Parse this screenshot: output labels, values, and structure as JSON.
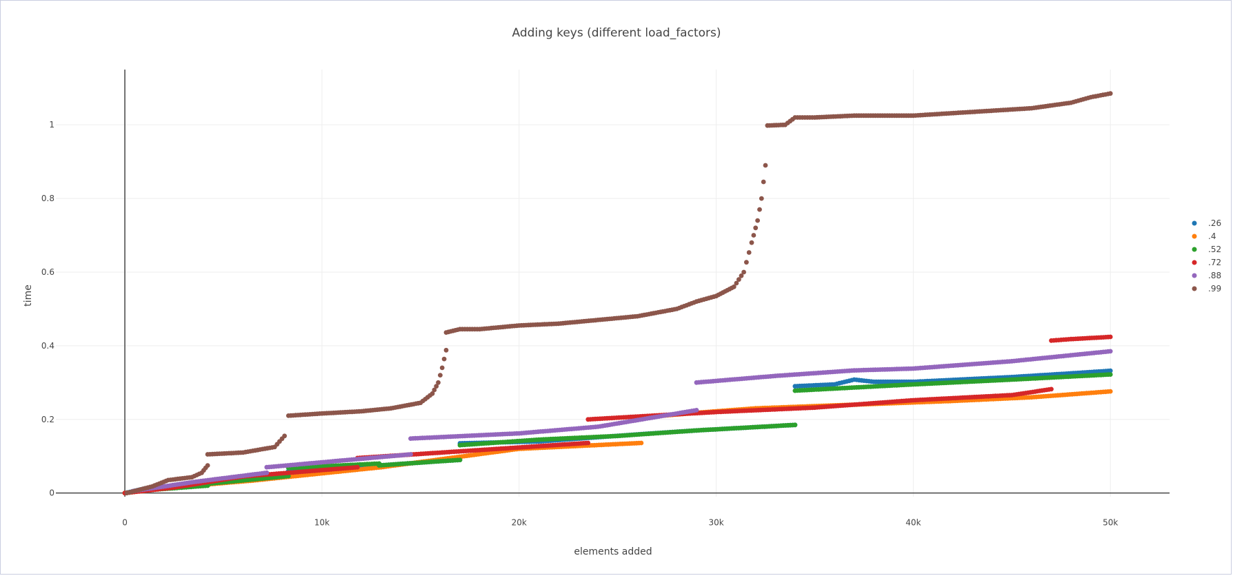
{
  "chart_data": {
    "type": "scatter",
    "title": "Adding keys (different load_factors)",
    "xlabel": "elements added",
    "ylabel": "time",
    "xlim": [
      -3500,
      53000
    ],
    "ylim": [
      -0.01,
      1.15
    ],
    "xticks": [
      0,
      10000,
      20000,
      30000,
      40000,
      50000
    ],
    "xtick_labels": [
      "0",
      "10k",
      "20k",
      "30k",
      "40k",
      "50k"
    ],
    "yticks": [
      0,
      0.2,
      0.4,
      0.6,
      0.8,
      1
    ],
    "ytick_labels": [
      "0",
      "0.2",
      "0.4",
      "0.6",
      "0.8",
      "1"
    ],
    "grid": true,
    "legend_position": "right",
    "series": [
      {
        "name": ".26",
        "color": "#1f77b4",
        "segments": [
          [
            [
              0,
              0
            ],
            [
              1000,
              0.012
            ],
            [
              2500,
              0.018
            ],
            [
              4000,
              0.024
            ]
          ],
          [
            [
              4000,
              0.024
            ],
            [
              6000,
              0.035
            ],
            [
              8300,
              0.045
            ]
          ],
          [
            [
              8300,
              0.06
            ],
            [
              12900,
              0.075
            ]
          ],
          [
            [
              12900,
              0.075
            ],
            [
              17000,
              0.09
            ]
          ],
          [
            [
              17000,
              0.135
            ],
            [
              21000,
              0.14
            ],
            [
              26200,
              0.16
            ],
            [
              29000,
              0.17
            ],
            [
              34000,
              0.185
            ]
          ],
          [
            [
              34000,
              0.29
            ],
            [
              36000,
              0.295
            ],
            [
              37000,
              0.308
            ],
            [
              38000,
              0.302
            ],
            [
              40000,
              0.302
            ],
            [
              45000,
              0.315
            ],
            [
              48000,
              0.325
            ],
            [
              50000,
              0.332
            ]
          ]
        ]
      },
      {
        "name": ".4",
        "color": "#ff7f0e",
        "segments": [
          [
            [
              0,
              0
            ],
            [
              3000,
              0.018
            ],
            [
              6500,
              0.034
            ]
          ],
          [
            [
              6500,
              0.034
            ],
            [
              13000,
              0.07
            ]
          ],
          [
            [
              13000,
              0.07
            ],
            [
              20000,
              0.12
            ],
            [
              26200,
              0.136
            ]
          ],
          [
            [
              26200,
              0.205
            ],
            [
              29000,
              0.218
            ],
            [
              32000,
              0.23
            ],
            [
              37000,
              0.24
            ],
            [
              42000,
              0.25
            ],
            [
              46000,
              0.26
            ],
            [
              50000,
              0.276
            ]
          ]
        ]
      },
      {
        "name": ".52",
        "color": "#2ca02c",
        "segments": [
          [
            [
              0,
              0
            ],
            [
              1200,
              0.008
            ],
            [
              4200,
              0.02
            ]
          ],
          [
            [
              4200,
              0.025
            ],
            [
              8300,
              0.046
            ]
          ],
          [
            [
              8300,
              0.068
            ],
            [
              12900,
              0.08
            ]
          ],
          [
            [
              12900,
              0.075
            ],
            [
              17000,
              0.09
            ]
          ],
          [
            [
              17000,
              0.13
            ],
            [
              21000,
              0.145
            ],
            [
              25000,
              0.155
            ],
            [
              29000,
              0.17
            ],
            [
              34000,
              0.185
            ]
          ],
          [
            [
              34000,
              0.278
            ],
            [
              40000,
              0.295
            ],
            [
              45000,
              0.308
            ],
            [
              50000,
              0.322
            ]
          ]
        ]
      },
      {
        "name": ".72",
        "color": "#d62728",
        "segments": [
          [
            [
              0,
              0
            ],
            [
              2500,
              0.015
            ],
            [
              6000,
              0.045
            ]
          ],
          [
            [
              6000,
              0.045
            ],
            [
              11800,
              0.07
            ]
          ],
          [
            [
              11800,
              0.095
            ],
            [
              23500,
              0.136
            ]
          ],
          [
            [
              23500,
              0.2
            ],
            [
              30000,
              0.22
            ],
            [
              35000,
              0.232
            ],
            [
              40000,
              0.252
            ],
            [
              45000,
              0.266
            ],
            [
              47000,
              0.282
            ]
          ],
          [
            [
              47000,
              0.414
            ],
            [
              48000,
              0.418
            ],
            [
              50000,
              0.424
            ]
          ]
        ]
      },
      {
        "name": ".88",
        "color": "#9467bd",
        "segments": [
          [
            [
              400,
              0.005
            ],
            [
              3500,
              0.03
            ],
            [
              7200,
              0.055
            ]
          ],
          [
            [
              7200,
              0.07
            ],
            [
              14500,
              0.105
            ]
          ],
          [
            [
              14500,
              0.148
            ],
            [
              20000,
              0.162
            ],
            [
              24000,
              0.18
            ],
            [
              29000,
              0.225
            ]
          ],
          [
            [
              29000,
              0.3
            ],
            [
              33000,
              0.318
            ],
            [
              37000,
              0.333
            ],
            [
              40000,
              0.338
            ],
            [
              45000,
              0.358
            ],
            [
              50000,
              0.385
            ]
          ]
        ]
      },
      {
        "name": ".99",
        "color": "#8c564b",
        "segments": [
          [
            [
              100,
              0
            ],
            [
              1400,
              0.018
            ],
            [
              2200,
              0.035
            ],
            [
              3400,
              0.043
            ],
            [
              3900,
              0.055
            ],
            [
              4200,
              0.075
            ]
          ],
          [
            [
              4200,
              0.105
            ],
            [
              6000,
              0.11
            ],
            [
              7600,
              0.125
            ],
            [
              8100,
              0.155
            ]
          ],
          [
            [
              8300,
              0.21
            ],
            [
              10000,
              0.216
            ],
            [
              12000,
              0.222
            ],
            [
              13500,
              0.23
            ],
            [
              15000,
              0.245
            ],
            [
              15600,
              0.27
            ],
            [
              15900,
              0.3
            ],
            [
              16100,
              0.34
            ],
            [
              16300,
              0.388
            ]
          ],
          [
            [
              16300,
              0.436
            ],
            [
              17000,
              0.445
            ],
            [
              18000,
              0.445
            ],
            [
              20000,
              0.455
            ],
            [
              22000,
              0.46
            ],
            [
              24000,
              0.47
            ],
            [
              26000,
              0.48
            ],
            [
              28000,
              0.5
            ],
            [
              29000,
              0.52
            ],
            [
              30000,
              0.535
            ],
            [
              30900,
              0.56
            ],
            [
              31400,
              0.6
            ],
            [
              31800,
              0.68
            ],
            [
              32100,
              0.74
            ],
            [
              32300,
              0.8
            ],
            [
              32500,
              0.89
            ]
          ],
          [
            [
              32600,
              0.998
            ],
            [
              33500,
              1.0
            ],
            [
              34000,
              1.02
            ],
            [
              35000,
              1.02
            ],
            [
              37000,
              1.025
            ],
            [
              40000,
              1.025
            ],
            [
              43000,
              1.035
            ],
            [
              46000,
              1.045
            ],
            [
              48000,
              1.06
            ],
            [
              49000,
              1.075
            ],
            [
              50000,
              1.085
            ]
          ]
        ]
      }
    ]
  }
}
